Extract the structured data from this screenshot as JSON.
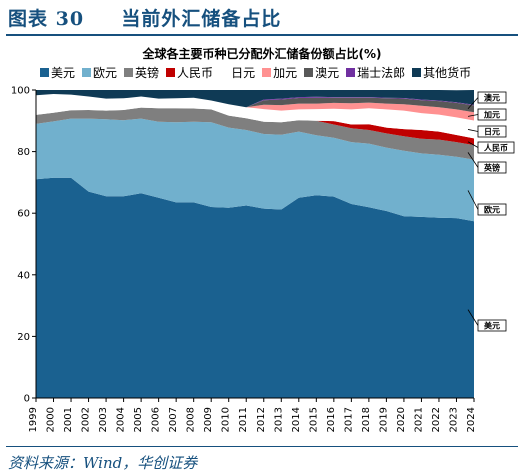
{
  "figure": {
    "label": "图表 30",
    "title": "当前外汇储备占比",
    "source": "资料来源：Wind，华创证券"
  },
  "chart_data": {
    "type": "area",
    "stacked": true,
    "title": "全球各主要币种已分配外汇储备份额占比(%)",
    "ylim": [
      0,
      100
    ],
    "yticks": [
      0,
      20,
      40,
      60,
      80,
      100
    ],
    "grid": false,
    "legend_position": "top",
    "x": [
      1999,
      2000,
      2001,
      2002,
      2003,
      2004,
      2005,
      2006,
      2007,
      2008,
      2009,
      2010,
      2011,
      2012,
      2013,
      2014,
      2015,
      2016,
      2017,
      2018,
      2019,
      2020,
      2021,
      2022,
      2023,
      2024
    ],
    "x_tick_labels": [
      "1999",
      "2000",
      "2001",
      "2002",
      "2003",
      "2004",
      "2005",
      "2006",
      "2007",
      "2008",
      "2009",
      "2010",
      "2011",
      "2012",
      "2013",
      "2014",
      "2015",
      "2016",
      "2017",
      "2018",
      "2019",
      "2020",
      "2021",
      "2022",
      "2023",
      "2024"
    ],
    "series": [
      {
        "name": "美元",
        "color": "#1a6190",
        "values": [
          71.0,
          71.5,
          71.5,
          67.0,
          65.5,
          65.5,
          66.5,
          65.0,
          63.5,
          63.5,
          62.0,
          61.8,
          62.5,
          61.5,
          61.2,
          65.0,
          65.8,
          65.4,
          63.0,
          61.9,
          60.7,
          59.0,
          58.8,
          58.5,
          58.4,
          57.4
        ]
      },
      {
        "name": "欧元",
        "color": "#71b0cd",
        "values": [
          18.0,
          18.3,
          19.2,
          23.7,
          25.0,
          24.7,
          24.2,
          24.7,
          26.0,
          26.2,
          27.5,
          26.0,
          24.5,
          24.2,
          24.3,
          21.5,
          19.5,
          19.1,
          20.1,
          20.7,
          20.6,
          21.3,
          20.6,
          20.5,
          19.9,
          20.0
        ]
      },
      {
        "name": "英镑",
        "color": "#7f7f7f",
        "values": [
          2.9,
          2.8,
          2.7,
          2.8,
          2.8,
          3.3,
          3.6,
          4.4,
          4.6,
          4.3,
          4.2,
          3.9,
          3.8,
          4.0,
          4.0,
          3.7,
          4.7,
          4.3,
          4.5,
          4.4,
          4.6,
          4.7,
          4.8,
          4.9,
          4.8,
          4.7
        ]
      },
      {
        "name": "人民币",
        "color": "#c00000",
        "values": [
          0,
          0,
          0,
          0,
          0,
          0,
          0,
          0,
          0,
          0,
          0,
          0,
          0,
          0,
          0,
          0,
          0,
          1.1,
          1.2,
          1.9,
          1.9,
          2.3,
          2.8,
          2.6,
          2.3,
          2.2
        ]
      },
      {
        "name": "日元",
        "color": "#ffffff",
        "values": [
          6.4,
          6.1,
          5.1,
          4.4,
          3.9,
          3.8,
          3.6,
          3.1,
          3.2,
          3.5,
          2.9,
          3.7,
          3.6,
          4.1,
          3.8,
          3.5,
          3.8,
          4.0,
          4.9,
          5.2,
          5.9,
          6.0,
          5.5,
          5.5,
          5.7,
          5.8
        ]
      },
      {
        "name": "加元",
        "color": "#ff9191",
        "values": [
          0,
          0,
          0,
          0,
          0,
          0,
          0,
          0,
          0,
          0,
          0,
          0,
          0,
          1.4,
          1.8,
          1.9,
          1.8,
          1.9,
          2.0,
          1.8,
          1.9,
          2.1,
          2.4,
          2.4,
          2.6,
          2.7
        ]
      },
      {
        "name": "澳元",
        "color": "#585858",
        "values": [
          0,
          0,
          0,
          0,
          0,
          0,
          0,
          0,
          0,
          0,
          0,
          0,
          0,
          1.5,
          1.8,
          1.8,
          1.9,
          1.7,
          1.8,
          1.6,
          1.7,
          1.8,
          1.8,
          2.0,
          2.1,
          2.2
        ]
      },
      {
        "name": "瑞士法郎",
        "color": "#7030a0",
        "values": [
          0,
          0,
          0,
          0,
          0,
          0,
          0,
          0,
          0,
          0,
          0,
          0,
          0,
          0.2,
          0.3,
          0.3,
          0.3,
          0.2,
          0.2,
          0.2,
          0.2,
          0.2,
          0.2,
          0.2,
          0.2,
          0.2
        ]
      },
      {
        "name": "其他货币",
        "color": "#0f3a55",
        "values": [
          1.7,
          1.3,
          1.5,
          2.1,
          2.8,
          2.7,
          2.1,
          2.8,
          2.7,
          2.5,
          3.4,
          4.6,
          5.6,
          3.1,
          2.8,
          2.3,
          2.2,
          2.3,
          2.3,
          2.3,
          2.5,
          2.6,
          3.1,
          3.4,
          3.9,
          4.8
        ]
      }
    ],
    "annotations": [
      {
        "label": "澳元",
        "series": "澳元"
      },
      {
        "label": "加元",
        "series": "加元"
      },
      {
        "label": "日元",
        "series": "日元"
      },
      {
        "label": "人民币",
        "series": "人民币"
      },
      {
        "label": "英镑",
        "series": "英镑"
      },
      {
        "label": "欧元",
        "series": "欧元"
      },
      {
        "label": "美元",
        "series": "美元"
      }
    ]
  }
}
